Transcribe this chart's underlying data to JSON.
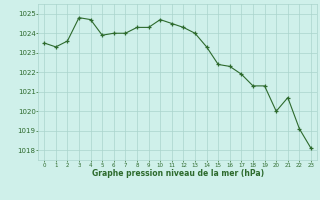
{
  "x": [
    0,
    1,
    2,
    3,
    4,
    5,
    6,
    7,
    8,
    9,
    10,
    11,
    12,
    13,
    14,
    15,
    16,
    17,
    18,
    19,
    20,
    21,
    22,
    23
  ],
  "y": [
    1023.5,
    1023.3,
    1023.6,
    1024.8,
    1024.7,
    1023.9,
    1024.0,
    1024.0,
    1024.3,
    1024.3,
    1024.7,
    1024.5,
    1024.3,
    1024.0,
    1023.3,
    1022.4,
    1022.3,
    1021.9,
    1021.3,
    1021.3,
    1020.0,
    1020.7,
    1019.1,
    1018.1
  ],
  "ylim": [
    1017.5,
    1025.5
  ],
  "yticks": [
    1018,
    1019,
    1020,
    1021,
    1022,
    1023,
    1024,
    1025
  ],
  "xticks": [
    0,
    1,
    2,
    3,
    4,
    5,
    6,
    7,
    8,
    9,
    10,
    11,
    12,
    13,
    14,
    15,
    16,
    17,
    18,
    19,
    20,
    21,
    22,
    23
  ],
  "line_color": "#2d6a2d",
  "marker_color": "#2d6a2d",
  "bg_color": "#cff0ea",
  "grid_color": "#aad4cc",
  "xlabel": "Graphe pression niveau de la mer (hPa)",
  "xlabel_color": "#2d6a2d",
  "tick_color": "#2d6a2d"
}
